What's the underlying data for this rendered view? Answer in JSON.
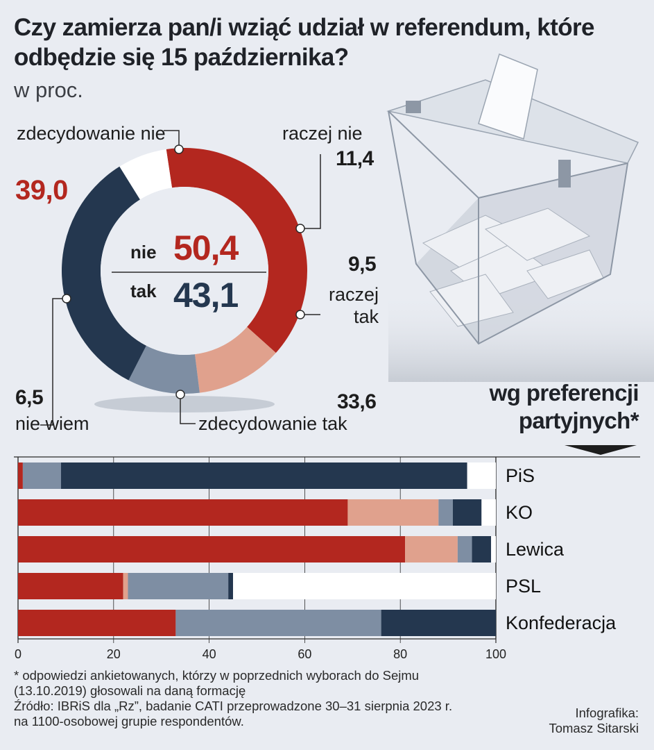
{
  "title": "Czy zamierza pan/i wziąć udział w referendum, które odbędzie się 15 października?",
  "unit": "w proc.",
  "colors": {
    "zdecydowanie_nie": "#b3271f",
    "raczej_nie": "#e0a18d",
    "raczej_tak": "#7e8ea3",
    "zdecydowanie_tak": "#24374f",
    "nie_wiem": "#ffffff"
  },
  "donut_labels": {
    "zdecydowanie_nie": "zdecydowanie nie",
    "raczej_nie": "raczej nie",
    "raczej_tak": "raczej tak",
    "zdecydowanie_tak": "zdecydowanie tak",
    "nie_wiem": "nie wiem"
  },
  "donut_values": {
    "zdecydowanie_nie": "39,0",
    "raczej_nie": "11,4",
    "raczej_tak": "9,5",
    "zdecydowanie_tak": "33,6",
    "nie_wiem": "6,5"
  },
  "center": {
    "nie_label": "nie",
    "nie_value": "50,4",
    "tak_label": "tak",
    "tak_value": "43,1"
  },
  "party_heading": "wg preferencji partyjnych*",
  "footnote": "* odpowiedzi ankietowanych, którzy w poprzednich wyborach do Sejmu (13.10.2019) głosowali na daną formację",
  "source": "Źródło: IBRiS dla „Rz”, badanie CATI przeprowadzone 30–31 sierpnia 2023 r. na 1100-osobowej grupie respondentów.",
  "credit_line1": "Infografika:",
  "credit_line2": "Tomasz Sitarski",
  "chart_data": [
    {
      "type": "pie",
      "title": "Czy zamierza pan/i wziąć udział w referendum, które odbędzie się 15 października?",
      "categories": [
        "zdecydowanie nie",
        "raczej nie",
        "raczej tak",
        "zdecydowanie tak",
        "nie wiem"
      ],
      "values": [
        39.0,
        11.4,
        9.5,
        33.6,
        6.5
      ]
    },
    {
      "type": "bar",
      "orientation": "horizontal",
      "stacked": true,
      "title": "wg preferencji partyjnych*",
      "categories": [
        "PiS",
        "KO",
        "Lewica",
        "PSL",
        "Konfederacja"
      ],
      "series": [
        {
          "name": "zdecydowanie nie",
          "values": [
            1,
            69,
            81,
            22,
            33
          ]
        },
        {
          "name": "raczej nie",
          "values": [
            0,
            19,
            11,
            1,
            0
          ]
        },
        {
          "name": "raczej tak",
          "values": [
            8,
            3,
            3,
            21,
            43
          ]
        },
        {
          "name": "zdecydowanie tak",
          "values": [
            85,
            6,
            4,
            1,
            24
          ]
        },
        {
          "name": "nie wiem",
          "values": [
            6,
            3,
            1,
            55,
            0
          ]
        }
      ],
      "xlim": [
        0,
        100
      ],
      "xticks": [
        "0",
        "20",
        "40",
        "60",
        "80",
        "100"
      ]
    }
  ]
}
